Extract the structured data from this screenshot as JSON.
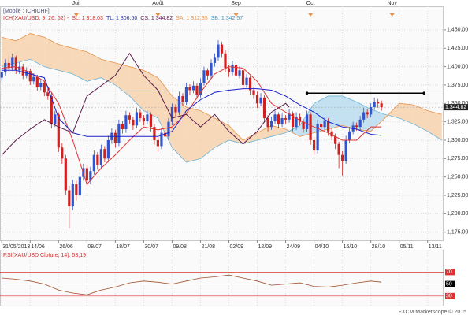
{
  "chart_data": {
    "type": "candlestick",
    "header": "[Mobile : ICHICHF]",
    "legend": [
      {
        "text": "ICH(XAU/USD, 9, 26, 52) -",
        "color": "#cc3333"
      },
      {
        "text": "SL: 1 318,03",
        "color": "#cc3333"
      },
      {
        "text": "TL: 1 306,60",
        "color": "#2233cc"
      },
      {
        "text": "CS: 1 344,82",
        "color": "#5a1a4a"
      },
      {
        "text": "SA: 1 312,35",
        "color": "#e8924a"
      },
      {
        "text": "SB: 1 342,57",
        "color": "#3399cc"
      }
    ],
    "xlim": [
      -0.5,
      124.5
    ],
    "xticks": [
      {
        "value": 0,
        "label": "31/05/2013"
      },
      {
        "value": 8,
        "label": "14/06"
      },
      {
        "value": 16,
        "label": "26/06"
      },
      {
        "value": 24,
        "label": "08/07"
      },
      {
        "value": 32,
        "label": "18/07"
      },
      {
        "value": 40,
        "label": "30/07"
      },
      {
        "value": 48,
        "label": "09/08"
      },
      {
        "value": 56,
        "label": "21/08"
      },
      {
        "value": 64,
        "label": "02/09"
      },
      {
        "value": 72,
        "label": "12/09"
      },
      {
        "value": 80,
        "label": "24/09"
      },
      {
        "value": 88,
        "label": "04/10"
      },
      {
        "value": 96,
        "label": "16/10"
      },
      {
        "value": 104,
        "label": "28/10"
      },
      {
        "value": 112,
        "label": "05/11"
      },
      {
        "value": 120,
        "label": "13/11"
      }
    ],
    "month_ticks": [
      {
        "value": 21,
        "label": "Juil"
      },
      {
        "value": 44,
        "label": "Août"
      },
      {
        "value": 66,
        "label": "Sep"
      },
      {
        "value": 87,
        "label": "Oct"
      },
      {
        "value": 110,
        "label": "Nov"
      }
    ],
    "ylim": [
      1164,
      1482
    ],
    "yticks": [
      {
        "value": 1450,
        "label": "1,450.00"
      },
      {
        "value": 1425,
        "label": "1,425.00"
      },
      {
        "value": 1400,
        "label": "1,400.00"
      },
      {
        "value": 1375,
        "label": "1,375.00"
      },
      {
        "value": 1350,
        "label": "1,350.00"
      },
      {
        "value": 1325,
        "label": "1,325.00"
      },
      {
        "value": 1300,
        "label": "1,300.00"
      },
      {
        "value": 1275,
        "label": "1,275.00"
      },
      {
        "value": 1250,
        "label": "1,250.00"
      },
      {
        "value": 1225,
        "label": "1,225.00"
      },
      {
        "value": 1200,
        "label": "1,200.00"
      },
      {
        "value": 1175,
        "label": "1,175.00"
      }
    ],
    "grid": true,
    "up_color": "#3355cc",
    "down_color": "#cc2222",
    "candles": [
      [
        1385,
        1398,
        1380,
        1392
      ],
      [
        1392,
        1410,
        1388,
        1405
      ],
      [
        1405,
        1412,
        1393,
        1398
      ],
      [
        1398,
        1418,
        1394,
        1412
      ],
      [
        1412,
        1415,
        1390,
        1395
      ],
      [
        1395,
        1406,
        1390,
        1400
      ],
      [
        1400,
        1404,
        1383,
        1388
      ],
      [
        1388,
        1399,
        1384,
        1394
      ],
      [
        1394,
        1397,
        1375,
        1380
      ],
      [
        1380,
        1391,
        1376,
        1386
      ],
      [
        1386,
        1389,
        1367,
        1372
      ],
      [
        1372,
        1383,
        1368,
        1378
      ],
      [
        1378,
        1381,
        1360,
        1365
      ],
      [
        1365,
        1370,
        1355,
        1360
      ],
      [
        1360,
        1364,
        1316,
        1322
      ],
      [
        1322,
        1340,
        1318,
        1335
      ],
      [
        1335,
        1338,
        1284,
        1290
      ],
      [
        1290,
        1296,
        1268,
        1275
      ],
      [
        1275,
        1280,
        1225,
        1232
      ],
      [
        1232,
        1238,
        1180,
        1210
      ],
      [
        1210,
        1246,
        1205,
        1240
      ],
      [
        1240,
        1245,
        1218,
        1225
      ],
      [
        1225,
        1256,
        1220,
        1250
      ],
      [
        1250,
        1268,
        1245,
        1262
      ],
      [
        1262,
        1266,
        1238,
        1245
      ],
      [
        1245,
        1264,
        1240,
        1258
      ],
      [
        1258,
        1286,
        1253,
        1280
      ],
      [
        1280,
        1284,
        1260,
        1266
      ],
      [
        1266,
        1294,
        1262,
        1288
      ],
      [
        1288,
        1292,
        1270,
        1275
      ],
      [
        1275,
        1306,
        1270,
        1300
      ],
      [
        1300,
        1316,
        1295,
        1310
      ],
      [
        1310,
        1314,
        1290,
        1296
      ],
      [
        1296,
        1328,
        1292,
        1322
      ],
      [
        1322,
        1326,
        1309,
        1315
      ],
      [
        1315,
        1340,
        1310,
        1334
      ],
      [
        1334,
        1338,
        1322,
        1328
      ],
      [
        1328,
        1332,
        1314,
        1320
      ],
      [
        1320,
        1344,
        1316,
        1338
      ],
      [
        1338,
        1342,
        1325,
        1330
      ],
      [
        1330,
        1334,
        1320,
        1326
      ],
      [
        1326,
        1340,
        1322,
        1335
      ],
      [
        1335,
        1338,
        1312,
        1318
      ],
      [
        1318,
        1322,
        1294,
        1300
      ],
      [
        1300,
        1305,
        1284,
        1292
      ],
      [
        1292,
        1316,
        1288,
        1310
      ],
      [
        1310,
        1314,
        1298,
        1305
      ],
      [
        1305,
        1330,
        1300,
        1325
      ],
      [
        1325,
        1350,
        1320,
        1345
      ],
      [
        1345,
        1349,
        1332,
        1338
      ],
      [
        1338,
        1366,
        1334,
        1360
      ],
      [
        1360,
        1364,
        1346,
        1352
      ],
      [
        1352,
        1378,
        1348,
        1372
      ],
      [
        1372,
        1376,
        1362,
        1368
      ],
      [
        1368,
        1380,
        1364,
        1374
      ],
      [
        1374,
        1377,
        1356,
        1362
      ],
      [
        1362,
        1384,
        1358,
        1378
      ],
      [
        1378,
        1400,
        1374,
        1395
      ],
      [
        1395,
        1398,
        1382,
        1388
      ],
      [
        1388,
        1410,
        1384,
        1405
      ],
      [
        1405,
        1418,
        1400,
        1412
      ],
      [
        1412,
        1436,
        1408,
        1430
      ],
      [
        1430,
        1434,
        1412,
        1418
      ],
      [
        1418,
        1422,
        1392,
        1398
      ],
      [
        1398,
        1402,
        1386,
        1392
      ],
      [
        1392,
        1408,
        1388,
        1402
      ],
      [
        1402,
        1406,
        1382,
        1388
      ],
      [
        1388,
        1400,
        1384,
        1395
      ],
      [
        1395,
        1398,
        1369,
        1375
      ],
      [
        1375,
        1390,
        1371,
        1385
      ],
      [
        1385,
        1388,
        1362,
        1368
      ],
      [
        1368,
        1372,
        1356,
        1362
      ],
      [
        1362,
        1366,
        1344,
        1350
      ],
      [
        1350,
        1364,
        1346,
        1358
      ],
      [
        1358,
        1361,
        1324,
        1330
      ],
      [
        1330,
        1334,
        1312,
        1318
      ],
      [
        1318,
        1332,
        1314,
        1326
      ],
      [
        1326,
        1340,
        1322,
        1335
      ],
      [
        1335,
        1338,
        1316,
        1322
      ],
      [
        1322,
        1336,
        1318,
        1330
      ],
      [
        1330,
        1334,
        1322,
        1328
      ],
      [
        1328,
        1342,
        1324,
        1336
      ],
      [
        1336,
        1339,
        1312,
        1318
      ],
      [
        1318,
        1338,
        1314,
        1332
      ],
      [
        1332,
        1336,
        1320,
        1325
      ],
      [
        1325,
        1328,
        1310,
        1315
      ],
      [
        1315,
        1340,
        1311,
        1335
      ],
      [
        1335,
        1338,
        1294,
        1300
      ],
      [
        1300,
        1304,
        1280,
        1286
      ],
      [
        1286,
        1328,
        1282,
        1322
      ],
      [
        1322,
        1326,
        1312,
        1318
      ],
      [
        1318,
        1332,
        1314,
        1327
      ],
      [
        1327,
        1330,
        1306,
        1312
      ],
      [
        1312,
        1316,
        1300,
        1305
      ],
      [
        1305,
        1309,
        1288,
        1295
      ],
      [
        1295,
        1298,
        1262,
        1280
      ],
      [
        1280,
        1285,
        1252,
        1272
      ],
      [
        1272,
        1306,
        1268,
        1300
      ],
      [
        1300,
        1318,
        1296,
        1312
      ],
      [
        1312,
        1325,
        1308,
        1320
      ],
      [
        1320,
        1324,
        1313,
        1318
      ],
      [
        1318,
        1333,
        1314,
        1328
      ],
      [
        1328,
        1344,
        1324,
        1338
      ],
      [
        1338,
        1342,
        1330,
        1335
      ],
      [
        1335,
        1350,
        1331,
        1345
      ],
      [
        1345,
        1358,
        1341,
        1352
      ],
      [
        1352,
        1356,
        1344,
        1350
      ],
      [
        1350,
        1354,
        1340,
        1344.82
      ]
    ],
    "lines": [
      {
        "color": "#dd3333",
        "x": [
          0,
          4,
          8,
          12,
          16,
          20,
          24,
          28,
          32,
          36,
          40,
          44,
          48,
          52,
          56,
          60,
          64,
          68,
          72,
          76,
          80,
          84,
          88,
          92,
          96,
          100,
          104,
          107
        ],
        "values": [
          1398,
          1400,
          1392,
          1380,
          1350,
          1300,
          1240,
          1262,
          1280,
          1300,
          1318,
          1314,
          1318,
          1336,
          1365,
          1390,
          1400,
          1398,
          1380,
          1350,
          1338,
          1327,
          1318,
          1310,
          1300,
          1300,
          1318,
          1318.03
        ]
      },
      {
        "color": "#1a22cc",
        "x": [
          0,
          4,
          8,
          12,
          16,
          20,
          24,
          28,
          32,
          36,
          40,
          44,
          48,
          52,
          56,
          60,
          64,
          68,
          72,
          76,
          80,
          84,
          88,
          92,
          96,
          100,
          104,
          107
        ],
        "values": [
          1395,
          1395,
          1390,
          1385,
          1330,
          1310,
          1305,
          1305,
          1305,
          1305,
          1305,
          1305,
          1312,
          1340,
          1355,
          1365,
          1368,
          1370,
          1370,
          1368,
          1360,
          1348,
          1338,
          1325,
          1318,
          1315,
          1308,
          1306.6
        ]
      },
      {
        "color": "#5a1a4a",
        "x": [
          0,
          4,
          8,
          12,
          16,
          20,
          24,
          28,
          32,
          36,
          40,
          44,
          48,
          52,
          56,
          60,
          64,
          68,
          72,
          76,
          80,
          81
        ],
        "values": [
          1280,
          1300,
          1315,
          1328,
          1318,
          1310,
          1360,
          1374,
          1388,
          1418,
          1388,
          1368,
          1330,
          1335,
          1318,
          1335,
          1312,
          1295,
          1312,
          1338,
          1350,
          1344.82
        ]
      }
    ],
    "cloud": {
      "sa_color": "#e8924a",
      "sb_color": "#6fb3d6",
      "sa_fill": "#f6d2ad",
      "sb_fill": "#b9dcee",
      "x": [
        0,
        4,
        8,
        12,
        16,
        20,
        24,
        28,
        32,
        36,
        40,
        44,
        48,
        52,
        56,
        60,
        64,
        68,
        72,
        76,
        80,
        84,
        88,
        92,
        96,
        100,
        104,
        108,
        112,
        116,
        120,
        124
      ],
      "sa": [
        1440,
        1435,
        1445,
        1440,
        1430,
        1425,
        1420,
        1410,
        1405,
        1400,
        1395,
        1385,
        1360,
        1345,
        1340,
        1330,
        1320,
        1300,
        1310,
        1320,
        1315,
        1305,
        1310,
        1315,
        1320,
        1315,
        1312,
        1330,
        1350,
        1348,
        1340,
        1335
      ],
      "sb": [
        1400,
        1405,
        1410,
        1400,
        1395,
        1390,
        1380,
        1385,
        1375,
        1360,
        1340,
        1330,
        1290,
        1270,
        1275,
        1290,
        1300,
        1295,
        1300,
        1305,
        1310,
        1320,
        1350,
        1360,
        1360,
        1352,
        1342,
        1335,
        1330,
        1322,
        1312,
        1300
      ]
    },
    "level_line": {
      "value": 1367,
      "color": "#999999"
    },
    "trend_line": {
      "value": 1364,
      "x": [
        86,
        119
      ],
      "color": "#000000"
    },
    "last_price": {
      "value": 1344.82,
      "label": "1,344.82"
    },
    "rsi": {
      "title": "RSI(XAU/USD Cloture, 14): 53,19",
      "ylim": [
        14,
        106
      ],
      "color": "#a0522d",
      "levels": [
        {
          "value": 70,
          "color": "#dd3333"
        },
        {
          "value": 50,
          "color": "#000000"
        },
        {
          "value": 30,
          "color": "#dd3333"
        }
      ],
      "x": [
        0,
        4,
        8,
        12,
        16,
        20,
        24,
        28,
        32,
        36,
        40,
        44,
        48,
        52,
        56,
        60,
        64,
        68,
        72,
        76,
        80,
        84,
        88,
        92,
        96,
        100,
        104,
        107
      ],
      "values": [
        60,
        58,
        55,
        50,
        40,
        35,
        32,
        40,
        45,
        52,
        55,
        53,
        50,
        55,
        60,
        62,
        65,
        60,
        55,
        48,
        50,
        52,
        46,
        45,
        48,
        52,
        55,
        53.19
      ]
    },
    "footer": "FXCM Marketscope © 2015"
  }
}
